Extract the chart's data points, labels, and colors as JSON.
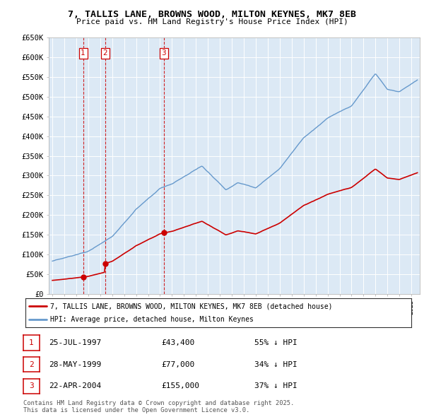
{
  "title": "7, TALLIS LANE, BROWNS WOOD, MILTON KEYNES, MK7 8EB",
  "subtitle": "Price paid vs. HM Land Registry's House Price Index (HPI)",
  "plot_bg_color": "#dce9f5",
  "red_color": "#cc0000",
  "blue_color": "#6699cc",
  "sales": [
    {
      "label": 1,
      "date_num": 1997.57,
      "price": 43400
    },
    {
      "label": 2,
      "date_num": 1999.41,
      "price": 77000
    },
    {
      "label": 3,
      "date_num": 2004.31,
      "price": 155000
    }
  ],
  "legend_label_red": "7, TALLIS LANE, BROWNS WOOD, MILTON KEYNES, MK7 8EB (detached house)",
  "legend_label_blue": "HPI: Average price, detached house, Milton Keynes",
  "table": [
    {
      "num": 1,
      "date": "25-JUL-1997",
      "price": "£43,400",
      "pct": "55% ↓ HPI"
    },
    {
      "num": 2,
      "date": "28-MAY-1999",
      "price": "£77,000",
      "pct": "34% ↓ HPI"
    },
    {
      "num": 3,
      "date": "22-APR-2004",
      "price": "£155,000",
      "pct": "37% ↓ HPI"
    }
  ],
  "footer": "Contains HM Land Registry data © Crown copyright and database right 2025.\nThis data is licensed under the Open Government Licence v3.0.",
  "ylim": [
    0,
    650000
  ],
  "yticks": [
    0,
    50000,
    100000,
    150000,
    200000,
    250000,
    300000,
    350000,
    400000,
    450000,
    500000,
    550000,
    600000,
    650000
  ],
  "ytick_labels": [
    "£0",
    "£50K",
    "£100K",
    "£150K",
    "£200K",
    "£250K",
    "£300K",
    "£350K",
    "£400K",
    "£450K",
    "£500K",
    "£550K",
    "£600K",
    "£650K"
  ],
  "xlim_start": 1994.7,
  "xlim_end": 2025.7
}
